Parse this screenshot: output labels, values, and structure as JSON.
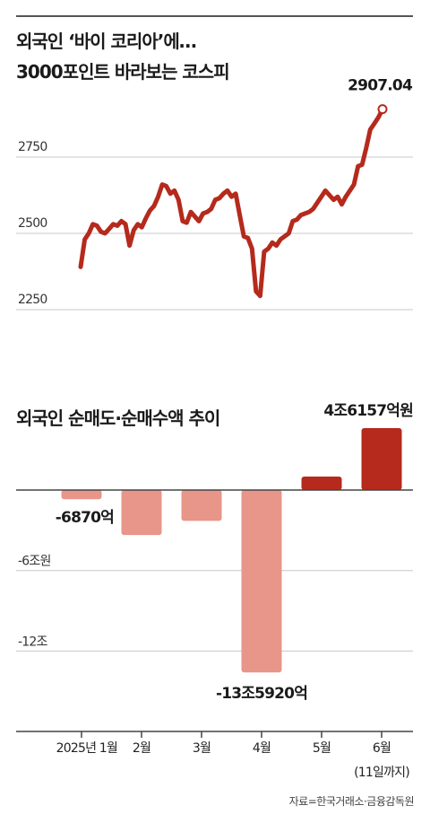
{
  "title": {
    "line1": "외국인 ‘바이 코리아’에…",
    "line2": "3000포인트 바라보는 코스피",
    "bar_title": "외국인 순매도·순매수액 추이"
  },
  "source": "자료=한국거래소·금융감독원",
  "colors": {
    "line": "#b52a1c",
    "bar_positive": "#b52a1c",
    "bar_negative": "#e8958a",
    "grid": "#c8c8c8"
  },
  "chart_data": [
    {
      "type": "line",
      "series": [
        {
          "name": "",
          "values": [
            2390,
            2480,
            2500,
            2530,
            2525,
            2505,
            2500,
            2515,
            2530,
            2525,
            2540,
            2530,
            2460,
            2510,
            2530,
            2520,
            2550,
            2575,
            2590,
            2620,
            2660,
            2655,
            2630,
            2640,
            2610,
            2540,
            2535,
            2570,
            2555,
            2540,
            2565,
            2570,
            2580,
            2610,
            2615,
            2630,
            2640,
            2620,
            2630,
            2560,
            2490,
            2485,
            2450,
            2310,
            2295,
            2440,
            2450,
            2470,
            2460,
            2480,
            2490,
            2500,
            2540,
            2545,
            2560,
            2565,
            2570,
            2580,
            2600,
            2620,
            2640,
            2625,
            2610,
            2620,
            2595,
            2620,
            2640,
            2660,
            2720,
            2725,
            2780,
            2840,
            2860,
            2880,
            2907.04
          ]
        }
      ],
      "ylim": [
        2180,
        2970
      ],
      "yticks": [
        {
          "value": 2250,
          "label": "2250"
        },
        {
          "value": 2500,
          "label": "2500"
        },
        {
          "value": 2750,
          "label": "2750"
        }
      ],
      "last_label": "2907.04",
      "grid": true
    },
    {
      "type": "bar",
      "categories": [
        "2025년 1월",
        "2월",
        "3월",
        "4월",
        "5월",
        "6월"
      ],
      "footnote": "(11일까지)",
      "unit": "억원",
      "values": [
        -6870,
        -33500,
        -23000,
        -135920,
        10000,
        46157
      ],
      "data_labels": [
        "-6870억",
        "",
        "",
        "-13조5920억",
        "",
        "4조6157억원"
      ],
      "yticks": [
        {
          "value": 0,
          "label": ""
        },
        {
          "value": -60000,
          "label": "-6조원"
        },
        {
          "value": -120000,
          "label": "-12조"
        }
      ],
      "ylim": [
        -170000,
        50000
      ],
      "grid": true
    }
  ]
}
